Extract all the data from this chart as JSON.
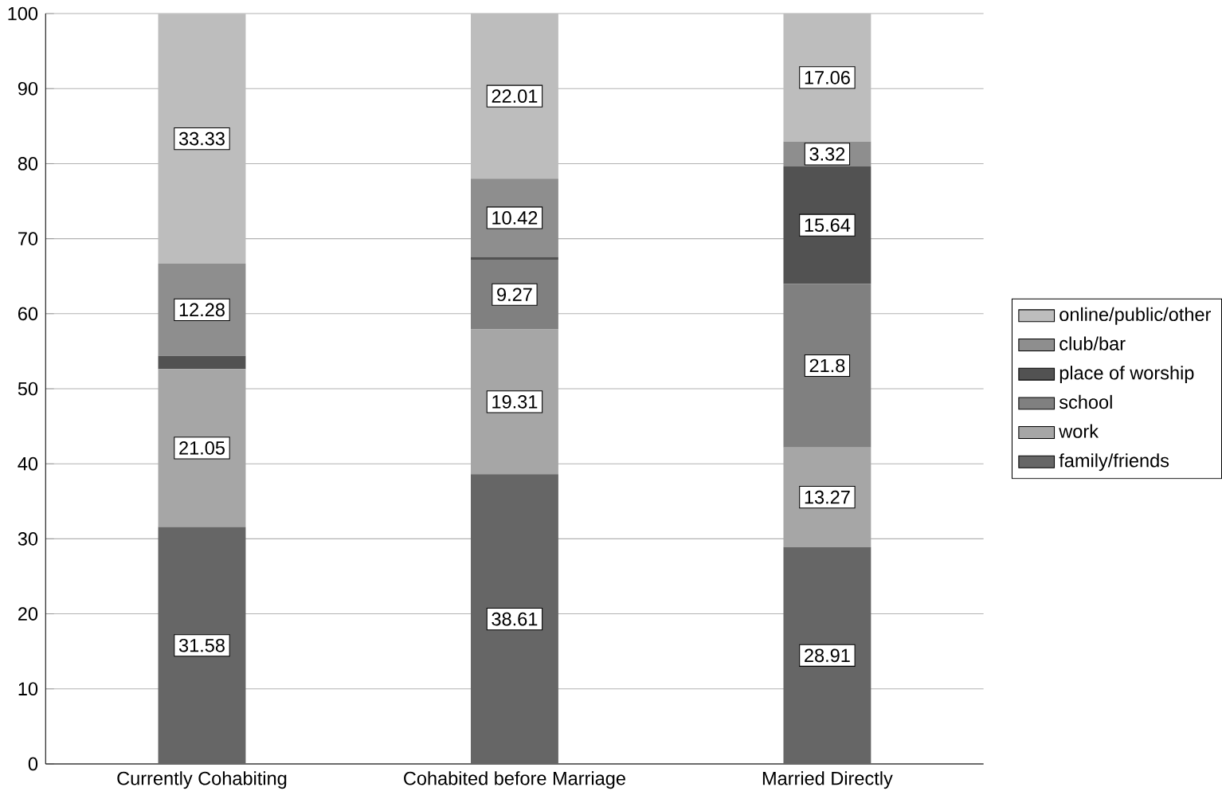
{
  "chart_data": {
    "type": "bar",
    "stacked": true,
    "categories": [
      "Currently Cohabiting",
      "Cohabited before Marriage",
      "Married Directly"
    ],
    "series": [
      {
        "name": "family/friends",
        "color": "#666666",
        "values": [
          31.58,
          38.61,
          28.91
        ],
        "value_labels": [
          "31.58",
          "38.61",
          "28.91"
        ]
      },
      {
        "name": "work",
        "color": "#a6a6a6",
        "values": [
          21.05,
          19.31,
          13.27
        ],
        "value_labels": [
          "21.05",
          "19.31",
          "13.27"
        ]
      },
      {
        "name": "school",
        "color": "#808080",
        "values": [
          0,
          9.27,
          21.8
        ],
        "value_labels": [
          null,
          "9.27",
          "21.8"
        ]
      },
      {
        "name": "place of worship",
        "color": "#525252",
        "values": [
          1.75,
          0.38,
          15.64
        ],
        "value_labels": [
          null,
          null,
          "15.64"
        ]
      },
      {
        "name": "club/bar",
        "color": "#8e8e8e",
        "values": [
          12.28,
          10.42,
          3.32
        ],
        "value_labels": [
          "12.28",
          "10.42",
          "3.32"
        ]
      },
      {
        "name": "online/public/other",
        "color": "#bdbdbd",
        "values": [
          33.33,
          22.01,
          17.06
        ],
        "value_labels": [
          "33.33",
          "22.01",
          "17.06"
        ]
      }
    ],
    "ylim": [
      0,
      100
    ],
    "yticks": [
      0,
      10,
      20,
      30,
      40,
      50,
      60,
      70,
      80,
      90,
      100
    ],
    "grid": "y",
    "legend": "right"
  }
}
